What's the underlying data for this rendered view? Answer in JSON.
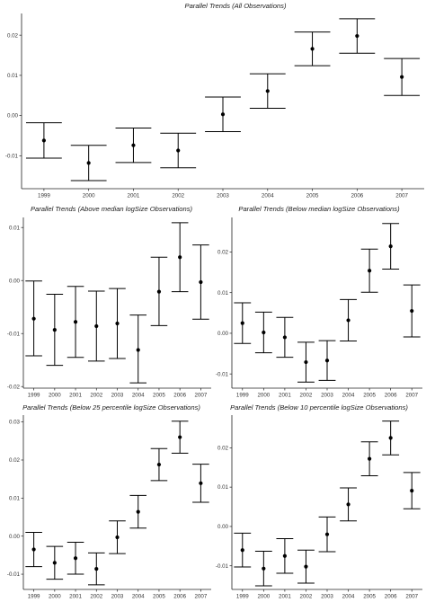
{
  "chart_data": [
    {
      "type": "errorbar",
      "title": "Parallel Trends (All Observations)",
      "categories": [
        "1999",
        "2000",
        "2001",
        "2002",
        "2003",
        "2004",
        "2005",
        "2006",
        "2007"
      ],
      "estimate": [
        -0.0062,
        -0.0118,
        -0.0074,
        -0.0087,
        0.0003,
        0.0061,
        0.0166,
        0.0198,
        0.0096
      ],
      "lower": [
        -0.0106,
        -0.0162,
        -0.0117,
        -0.013,
        -0.004,
        0.0018,
        0.0124,
        0.0155,
        0.005
      ],
      "upper": [
        -0.0018,
        -0.0074,
        -0.0031,
        -0.0044,
        0.0046,
        0.0104,
        0.0208,
        0.0241,
        0.0142
      ],
      "yticks": [
        -0.01,
        0.0,
        0.01,
        0.02
      ],
      "ytick_labels": [
        "-0.01",
        "0.00",
        "0.01",
        "0.02"
      ],
      "ylim": [
        -0.0182,
        0.0254
      ],
      "grid": false
    },
    {
      "type": "errorbar",
      "title": "Parallel Trends (Above median logSize Observations)",
      "categories": [
        "1999",
        "2000",
        "2001",
        "2002",
        "2003",
        "2004",
        "2005",
        "2006",
        "2007"
      ],
      "estimate": [
        -0.0072,
        -0.0093,
        -0.0078,
        -0.0086,
        -0.0081,
        -0.0131,
        -0.0021,
        0.0044,
        -0.0003
      ],
      "lower": [
        -0.0142,
        -0.016,
        -0.0145,
        -0.0152,
        -0.0147,
        -0.0193,
        -0.0085,
        -0.0021,
        -0.0073
      ],
      "upper": [
        -0.0001,
        -0.0026,
        -0.0011,
        -0.002,
        -0.0015,
        -0.0065,
        0.0044,
        0.0109,
        0.0067
      ],
      "yticks": [
        -0.02,
        -0.01,
        0.0,
        0.01
      ],
      "ytick_labels": [
        "-0.02",
        "-0.01",
        "0.00",
        "0.01"
      ],
      "ylim": [
        -0.0203,
        0.0119
      ],
      "grid": false
    },
    {
      "type": "errorbar",
      "title": "Parallel Trends (Below median logSize Observations)",
      "categories": [
        "1999",
        "2000",
        "2001",
        "2002",
        "2003",
        "2004",
        "2005",
        "2006",
        "2007"
      ],
      "estimate": [
        0.0025,
        0.0002,
        -0.001,
        -0.0071,
        -0.0067,
        0.0032,
        0.0154,
        0.0214,
        0.0055
      ],
      "lower": [
        -0.0025,
        -0.0048,
        -0.0059,
        -0.012,
        -0.0116,
        -0.0019,
        0.0101,
        0.0158,
        -0.0009
      ],
      "upper": [
        0.0075,
        0.0052,
        0.0039,
        -0.0022,
        -0.0018,
        0.0083,
        0.0207,
        0.027,
        0.0119
      ],
      "yticks": [
        -0.01,
        0.0,
        0.01,
        0.02
      ],
      "ytick_labels": [
        "-0.01",
        "0.00",
        "0.01",
        "0.02"
      ],
      "ylim": [
        -0.0135,
        0.0285
      ],
      "grid": false
    },
    {
      "type": "errorbar",
      "title": "Parallel Trends (Below 25 percentile logSize Observations)",
      "categories": [
        "1999",
        "2000",
        "2001",
        "2002",
        "2003",
        "2004",
        "2005",
        "2006",
        "2007"
      ],
      "estimate": [
        -0.0035,
        -0.007,
        -0.0058,
        -0.0086,
        -0.0003,
        0.0064,
        0.0188,
        0.026,
        0.0139
      ],
      "lower": [
        -0.008,
        -0.0113,
        -0.01,
        -0.0128,
        -0.0046,
        0.0021,
        0.0146,
        0.0218,
        0.0089
      ],
      "upper": [
        0.001,
        -0.0027,
        -0.0016,
        -0.0044,
        0.004,
        0.0107,
        0.023,
        0.0302,
        0.0189
      ],
      "yticks": [
        -0.01,
        0.0,
        0.01,
        0.02,
        0.03
      ],
      "ytick_labels": [
        "-0.01",
        "0.00",
        "0.01",
        "0.02",
        "0.03"
      ],
      "ylim": [
        -0.014,
        0.0318
      ],
      "grid": false
    },
    {
      "type": "errorbar",
      "title": "Parallel Trends (Below 10 percentile logSize Observations)",
      "categories": [
        "1999",
        "2000",
        "2001",
        "2002",
        "2003",
        "2004",
        "2005",
        "2006",
        "2007"
      ],
      "estimate": [
        -0.006,
        -0.0107,
        -0.0075,
        -0.0102,
        -0.002,
        0.0056,
        0.0172,
        0.0225,
        0.0091
      ],
      "lower": [
        -0.0103,
        -0.0151,
        -0.0119,
        -0.0144,
        -0.0064,
        0.0014,
        0.0129,
        0.0182,
        0.0045
      ],
      "upper": [
        -0.0017,
        -0.0063,
        -0.0031,
        -0.006,
        0.0024,
        0.0098,
        0.0215,
        0.0268,
        0.0137
      ],
      "yticks": [
        -0.01,
        0.0,
        0.01,
        0.02
      ],
      "ytick_labels": [
        "-0.01",
        "0.00",
        "0.01",
        "0.02"
      ],
      "ylim": [
        -0.016,
        0.0283
      ],
      "grid": false
    }
  ]
}
